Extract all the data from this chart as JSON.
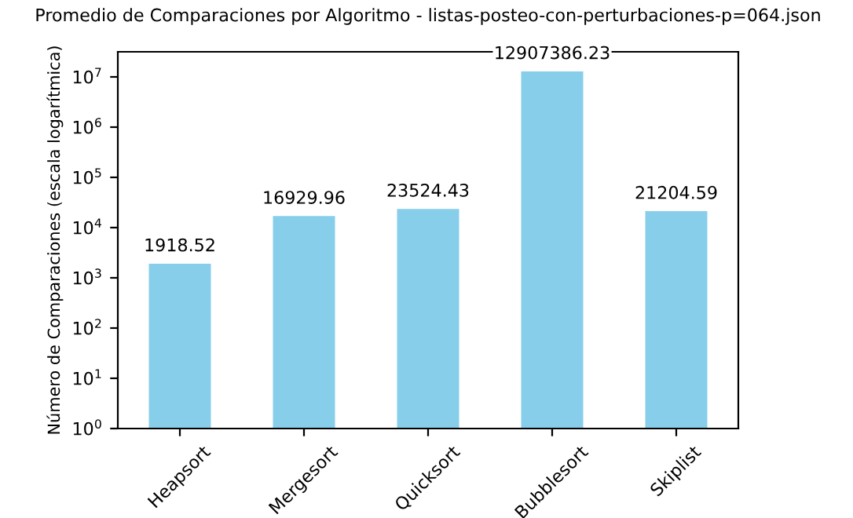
{
  "chart_data": {
    "type": "bar",
    "title": "Promedio de Comparaciones por Algoritmo - listas-posteo-con-perturbaciones-p=064.json",
    "ylabel": "Número de Comparaciones (escala logarítmica)",
    "categories": [
      "Heapsort",
      "Mergesort",
      "Quicksort",
      "Bubblesort",
      "Skiplist"
    ],
    "values": [
      1918.52,
      16929.96,
      23524.43,
      12907386.23,
      21204.59
    ],
    "color": "#87ceeb",
    "log": true,
    "data_labels": true,
    "ylim": [
      1,
      31600000
    ],
    "yticks": [
      {
        "value": 1,
        "label": "10$^{0}$"
      },
      {
        "value": 10,
        "label": "10$^{1}$"
      },
      {
        "value": 100,
        "label": "10$^{2}$"
      },
      {
        "value": 1000,
        "label": "10$^{3}$"
      },
      {
        "value": 10000,
        "label": "10$^{4}$"
      },
      {
        "value": 100000,
        "label": "10$^{5}$"
      },
      {
        "value": 1000000,
        "label": "10$^{6}$"
      },
      {
        "value": 10000000,
        "label": "10$^{7}$"
      }
    ]
  }
}
